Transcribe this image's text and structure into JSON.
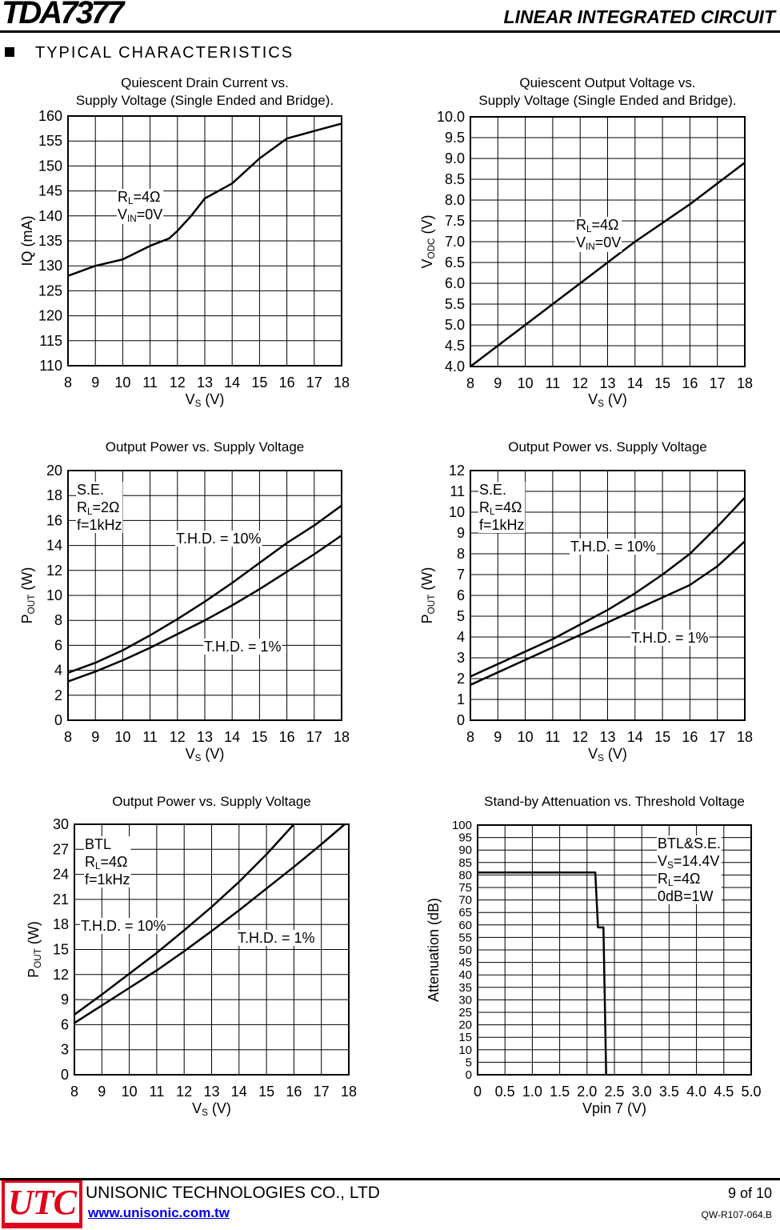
{
  "header": {
    "part_number": "TDA7377",
    "doc_type": "LINEAR INTEGRATED CIRCUIT"
  },
  "section_title": "TYPICAL CHARACTERISTICS",
  "footer": {
    "logo_text": "UTC",
    "company": "UNISONIC TECHNOLOGIES CO., LTD",
    "url": "www.unisonic.com.tw",
    "page": "9 of 10",
    "doc_number": "QW-R107-064.B"
  },
  "chart_data": [
    {
      "type": "line",
      "title": [
        "Quiescent Drain Current vs.",
        "Supply Voltage (Single Ended and Bridge)."
      ],
      "xlabel": [
        "V",
        "S",
        " (V)"
      ],
      "ylabel": [
        "IQ (mA)",
        "",
        ""
      ],
      "xlim": [
        8,
        18
      ],
      "ylim": [
        110,
        160
      ],
      "xstep": 1,
      "ystep": 5,
      "xticks": [
        "8",
        "9",
        "10",
        "11",
        "12",
        "13",
        "14",
        "15",
        "16",
        "17",
        "18"
      ],
      "yticks": [
        "110",
        "115",
        "120",
        "125",
        "130",
        "135",
        "140",
        "145",
        "150",
        "155",
        "160"
      ],
      "grid": true,
      "annotations": [
        [
          [
            "R",
            "L",
            "=4Ω"
          ],
          [
            "V",
            "IN",
            "=0V"
          ]
        ]
      ],
      "series": [
        {
          "x": [
            8,
            9,
            10,
            11,
            11.7,
            12,
            12.5,
            13,
            14,
            15,
            16,
            17,
            18
          ],
          "y": [
            128,
            130,
            131.3,
            134,
            135.5,
            137,
            140,
            143.5,
            146.5,
            151.5,
            155.5,
            157,
            158.5
          ]
        }
      ]
    },
    {
      "type": "line",
      "title": [
        "Quiescent Output Voltage vs.",
        "Supply Voltage (Single Ended and Bridge)."
      ],
      "xlabel": [
        "V",
        "S",
        " (V)"
      ],
      "ylabel": [
        "V",
        "ODC",
        " (V)"
      ],
      "xlim": [
        8,
        18
      ],
      "ylim": [
        4.0,
        10.0
      ],
      "xstep": 1,
      "ystep": 0.5,
      "xticks": [
        "8",
        "9",
        "10",
        "11",
        "12",
        "13",
        "14",
        "15",
        "16",
        "17",
        "18"
      ],
      "yticks": [
        "4.0",
        "4.5",
        "5.0",
        "5.5",
        "6.0",
        "6.5",
        "7.0",
        "7.5",
        "8.0",
        "8.5",
        "9.0",
        "9.5",
        "10.0"
      ],
      "grid": true,
      "annotations": [
        [
          [
            "R",
            "L",
            "=4Ω"
          ],
          [
            "V",
            "IN",
            "=0V"
          ]
        ]
      ],
      "series": [
        {
          "x": [
            8,
            9,
            10,
            11,
            12,
            13,
            14,
            15,
            16,
            17,
            18
          ],
          "y": [
            4.0,
            4.5,
            5.0,
            5.5,
            6.0,
            6.5,
            7.0,
            7.45,
            7.9,
            8.4,
            8.9
          ]
        }
      ]
    },
    {
      "type": "line",
      "title": [
        "Output Power vs. Supply Voltage"
      ],
      "xlabel": [
        "V",
        "S",
        " (V)"
      ],
      "ylabel": [
        "P",
        "OUT",
        " (W)"
      ],
      "xlim": [
        8,
        18
      ],
      "ylim": [
        0,
        20
      ],
      "xstep": 1,
      "ystep": 2,
      "xticks": [
        "8",
        "9",
        "10",
        "11",
        "12",
        "13",
        "14",
        "15",
        "16",
        "17",
        "18"
      ],
      "yticks": [
        "0",
        "2",
        "4",
        "6",
        "8",
        "10",
        "12",
        "14",
        "16",
        "18",
        "20"
      ],
      "grid": true,
      "annotations": [
        [
          [
            "S.E.",
            "",
            ""
          ],
          [
            "R",
            "L",
            "=2Ω"
          ],
          [
            "f=1kHz",
            "",
            ""
          ]
        ],
        [
          [
            "T.H.D. = 10%",
            "",
            ""
          ]
        ],
        [
          [
            "T.H.D. = 1%",
            "",
            ""
          ]
        ]
      ],
      "series": [
        {
          "name": "T.H.D. = 10%",
          "x": [
            8,
            9,
            10,
            11,
            12,
            13,
            14,
            15,
            16,
            17,
            18
          ],
          "y": [
            3.8,
            4.6,
            5.6,
            6.8,
            8.1,
            9.5,
            11,
            12.6,
            14.2,
            15.6,
            17.2
          ]
        },
        {
          "name": "T.H.D. = 1%",
          "x": [
            8,
            9,
            10,
            11,
            12,
            13,
            14,
            15,
            16,
            17,
            18
          ],
          "y": [
            3.1,
            3.9,
            4.8,
            5.8,
            6.9,
            8.0,
            9.2,
            10.5,
            11.9,
            13.3,
            14.8
          ]
        }
      ]
    },
    {
      "type": "line",
      "title": [
        "Output Power vs. Supply Voltage"
      ],
      "xlabel": [
        "V",
        "S",
        " (V)"
      ],
      "ylabel": [
        "P",
        "OUT",
        " (W)"
      ],
      "xlim": [
        8,
        18
      ],
      "ylim": [
        0,
        12
      ],
      "xstep": 1,
      "ystep": 1,
      "xticks": [
        "8",
        "9",
        "10",
        "11",
        "12",
        "13",
        "14",
        "15",
        "16",
        "17",
        "18"
      ],
      "yticks": [
        "0",
        "1",
        "2",
        "3",
        "4",
        "5",
        "6",
        "7",
        "8",
        "9",
        "10",
        "11",
        "12"
      ],
      "grid": true,
      "annotations": [
        [
          [
            "S.E.",
            "",
            ""
          ],
          [
            "R",
            "L",
            "=4Ω"
          ],
          [
            "f=1kHz",
            "",
            ""
          ]
        ],
        [
          [
            "T.H.D. = 10%",
            "",
            ""
          ]
        ],
        [
          [
            "T.H.D. = 1%",
            "",
            ""
          ]
        ]
      ],
      "series": [
        {
          "name": "T.H.D. = 10%",
          "x": [
            8,
            9,
            10,
            11,
            12,
            13,
            14,
            15,
            16,
            17,
            18
          ],
          "y": [
            2.1,
            2.7,
            3.3,
            3.9,
            4.6,
            5.3,
            6.1,
            7.0,
            8.0,
            9.3,
            10.7
          ]
        },
        {
          "name": "T.H.D. = 1%",
          "x": [
            8,
            9,
            10,
            11,
            12,
            13,
            14,
            15,
            16,
            17,
            18
          ],
          "y": [
            1.7,
            2.3,
            2.9,
            3.5,
            4.1,
            4.7,
            5.3,
            5.9,
            6.5,
            7.4,
            8.6
          ]
        }
      ]
    },
    {
      "type": "line",
      "title": [
        "Output Power vs. Supply Voltage"
      ],
      "xlabel": [
        "V",
        "S",
        " (V)"
      ],
      "ylabel": [
        "P",
        "OUT",
        " (W)"
      ],
      "xlim": [
        8,
        18
      ],
      "ylim": [
        0,
        30
      ],
      "xstep": 1,
      "ystep": 3,
      "xticks": [
        "8",
        "9",
        "10",
        "11",
        "12",
        "13",
        "14",
        "15",
        "16",
        "17",
        "18"
      ],
      "yticks": [
        "0",
        "3",
        "6",
        "9",
        "12",
        "15",
        "18",
        "21",
        "24",
        "27",
        "30"
      ],
      "grid": true,
      "annotations": [
        [
          [
            "BTL",
            "",
            ""
          ],
          [
            "R",
            "L",
            "=4Ω"
          ],
          [
            "f=1kHz",
            "",
            ""
          ]
        ],
        [
          [
            "T.H.D. = 10%",
            "",
            ""
          ]
        ],
        [
          [
            "T.H.D. = 1%",
            "",
            ""
          ]
        ]
      ],
      "series": [
        {
          "name": "T.H.D. = 10%",
          "x": [
            8,
            9,
            10,
            11,
            12,
            13,
            14,
            15,
            16
          ],
          "y": [
            7.2,
            9.6,
            12.1,
            14.6,
            17.3,
            20.1,
            23.1,
            26.4,
            30
          ]
        },
        {
          "name": "T.H.D. = 1%",
          "x": [
            8,
            9,
            10,
            11,
            12,
            13,
            14,
            15,
            16,
            17,
            17.85
          ],
          "y": [
            6.2,
            8.3,
            10.4,
            12.5,
            14.8,
            17.2,
            19.7,
            22.3,
            24.9,
            27.6,
            30
          ]
        }
      ]
    },
    {
      "type": "line",
      "title": [
        "Stand-by Attenuation vs. Threshold Voltage"
      ],
      "xlabel": [
        "Vpin 7 (V)",
        "",
        ""
      ],
      "ylabel": [
        "Attenuation (dB)",
        "",
        ""
      ],
      "xlim": [
        0,
        5
      ],
      "ylim": [
        0,
        100
      ],
      "xstep": 0.5,
      "ystep": 5,
      "xticks": [
        "0",
        "0.5",
        "1.0",
        "1.5",
        "2.0",
        "2.5",
        "3.0",
        "3.5",
        "4.0",
        "4.5",
        "5.0"
      ],
      "yticks": [
        "0",
        "5",
        "10",
        "15",
        "20",
        "25",
        "30",
        "35",
        "40",
        "45",
        "50",
        "55",
        "60",
        "65",
        "70",
        "75",
        "80",
        "85",
        "90",
        "95",
        "100"
      ],
      "grid": true,
      "annotations": [
        [
          [
            "BTL&S.E.",
            "",
            ""
          ],
          [
            "V",
            "S",
            "=14.4V"
          ],
          [
            "R",
            "L",
            "=4Ω"
          ],
          [
            "0dB=1W",
            "",
            ""
          ]
        ]
      ],
      "series": [
        {
          "x": [
            0,
            2.15,
            2.2,
            2.3,
            2.35
          ],
          "y": [
            81,
            81,
            59,
            59,
            0
          ]
        }
      ]
    }
  ]
}
